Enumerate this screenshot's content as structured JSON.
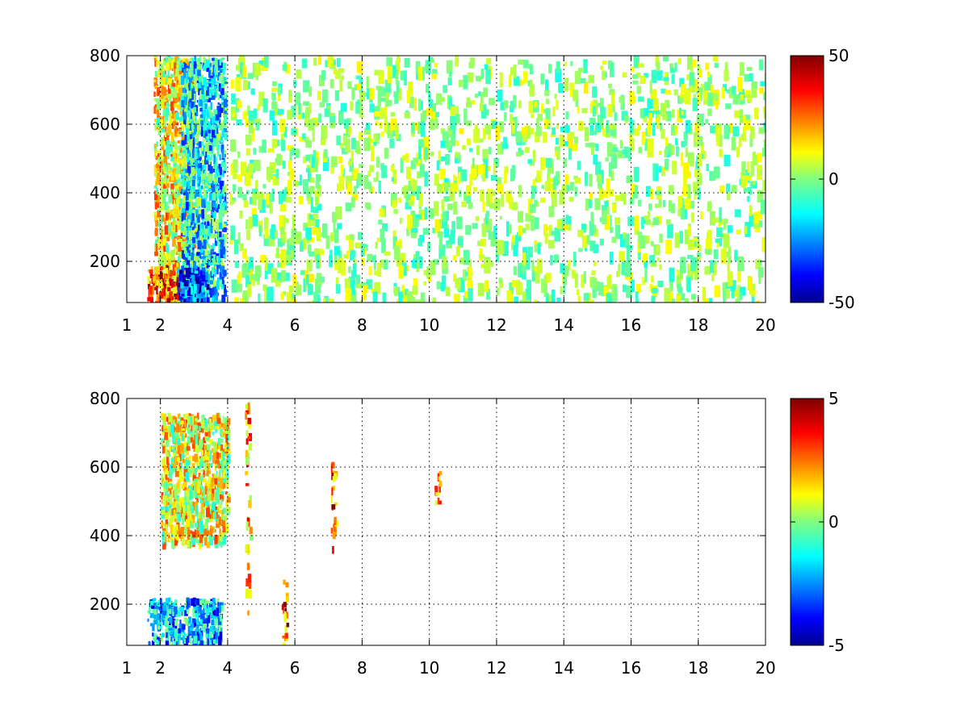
{
  "chart_data": [
    {
      "type": "heatmap",
      "title": "",
      "xlabel": "",
      "ylabel": "",
      "xlim": [
        1,
        20
      ],
      "ylim": [
        80,
        800
      ],
      "xticks": [
        1,
        2,
        4,
        6,
        8,
        10,
        12,
        14,
        16,
        18,
        20
      ],
      "xtick_labels": [
        "1",
        "2",
        "4",
        "6",
        "8",
        "10",
        "12",
        "14",
        "16",
        "18",
        "20"
      ],
      "yticks": [
        200,
        400,
        600,
        800
      ],
      "ytick_labels": [
        "200",
        "400",
        "600",
        "800"
      ],
      "grid": true,
      "colormap": "jet",
      "clim": [
        -50,
        50
      ],
      "colorbar_ticks": [
        50,
        0,
        -50
      ],
      "colorbar_tick_labels": [
        "50",
        "0",
        "-50"
      ],
      "regions": [
        {
          "desc": "dense warm band",
          "x": [
            1.8,
            3.0
          ],
          "y": [
            80,
            800
          ],
          "value": 12
        },
        {
          "desc": "dense cool band",
          "x": [
            2.6,
            3.9
          ],
          "y": [
            80,
            800
          ],
          "value": -14
        },
        {
          "desc": "strong warm patch",
          "x": [
            1.6,
            2.6
          ],
          "y": [
            90,
            190
          ],
          "value": 30
        },
        {
          "desc": "strong cool patch",
          "x": [
            2.5,
            3.4
          ],
          "y": [
            90,
            190
          ],
          "value": -32
        },
        {
          "desc": "sparse scatter",
          "x": [
            4.0,
            20.0
          ],
          "y": [
            80,
            800
          ],
          "value": 2
        }
      ]
    },
    {
      "type": "heatmap",
      "title": "",
      "xlabel": "",
      "ylabel": "",
      "xlim": [
        1,
        20
      ],
      "ylim": [
        80,
        800
      ],
      "xticks": [
        1,
        2,
        4,
        6,
        8,
        10,
        12,
        14,
        16,
        18,
        20
      ],
      "xtick_labels": [
        "1",
        "2",
        "4",
        "6",
        "8",
        "10",
        "12",
        "14",
        "16",
        "18",
        "20"
      ],
      "yticks": [
        200,
        400,
        600,
        800
      ],
      "ytick_labels": [
        "200",
        "400",
        "600",
        "800"
      ],
      "grid": true,
      "colormap": "jet",
      "clim": [
        -5,
        5
      ],
      "colorbar_ticks": [
        5,
        0,
        -5
      ],
      "colorbar_tick_labels": [
        "5",
        "0",
        "-5"
      ],
      "regions": [
        {
          "desc": "upper cluster",
          "x": [
            2.0,
            4.0
          ],
          "y": [
            380,
            760
          ],
          "value": 1
        },
        {
          "desc": "lower cluster",
          "x": [
            1.6,
            3.8
          ],
          "y": [
            90,
            220
          ],
          "value": -2
        },
        {
          "desc": "streak",
          "x": [
            4.5,
            4.65
          ],
          "y": [
            180,
            790
          ],
          "value": 2
        },
        {
          "desc": "streak",
          "x": [
            5.6,
            5.75
          ],
          "y": [
            80,
            280
          ],
          "value": 3
        },
        {
          "desc": "spot",
          "x": [
            7.05,
            7.2
          ],
          "y": [
            350,
            620
          ],
          "value": 3
        },
        {
          "desc": "spot",
          "x": [
            10.15,
            10.3
          ],
          "y": [
            500,
            590
          ],
          "value": 2
        }
      ]
    }
  ],
  "colors": {
    "axis": "#000000",
    "background": "#ffffff"
  }
}
